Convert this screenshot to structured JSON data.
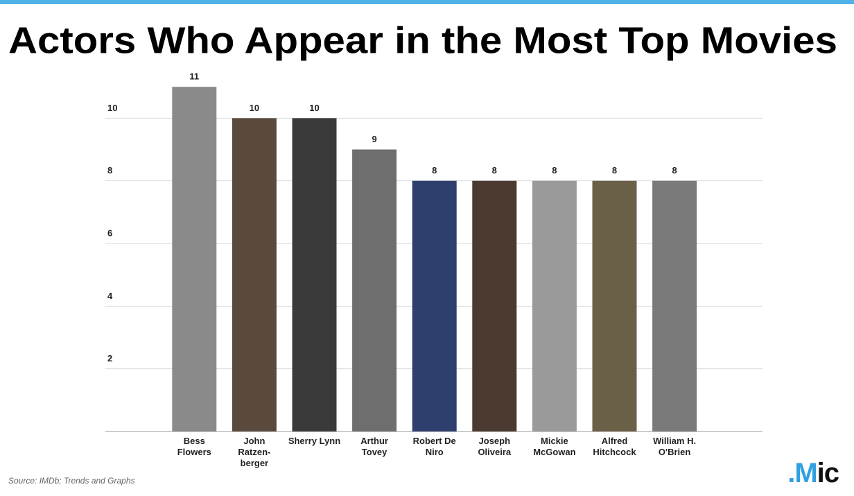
{
  "chart_data": {
    "type": "bar",
    "title": "Actors Who Appear in the Most Top Movies",
    "categories": [
      "Bess\nFlowers",
      "John\nRatzen-\nberger",
      "Sherry Lynn",
      "Arthur\nTovey",
      "Robert De\nNiro",
      "Joseph\nOliveira",
      "Mickie\nMcGowan",
      "Alfred\nHitchcock",
      "William H.\nO'Brien"
    ],
    "values": [
      11,
      10,
      10,
      9,
      8,
      8,
      8,
      8,
      8
    ],
    "colors": [
      "#8a8a8a",
      "#5a4a3e",
      "#3a3a3a",
      "#6e6e6e",
      "#2e3f6e",
      "#4a3a30",
      "#9a9a9a",
      "#6a6048",
      "#7a7a7a"
    ],
    "ylim": [
      0,
      12
    ],
    "yticks": [
      2,
      4,
      6,
      8,
      10
    ],
    "grid": true,
    "source": "Source: IMDb; Trends and Graphs",
    "logo": ".Mic"
  }
}
